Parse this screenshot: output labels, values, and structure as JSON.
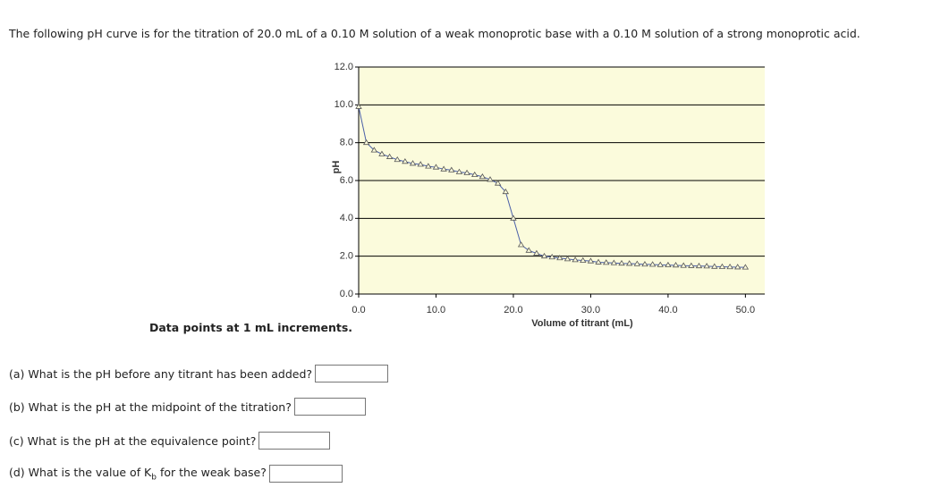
{
  "intro": "The following pH curve is for the titration of 20.0 mL of a 0.10 M solution of a weak monoprotic base with a 0.10 M solution of a strong monoprotic acid.",
  "chart_data": {
    "type": "line",
    "xlabel": "Volume of titrant (mL)",
    "ylabel": "pH",
    "x": [
      0,
      1,
      2,
      3,
      4,
      5,
      6,
      7,
      8,
      9,
      10,
      11,
      12,
      13,
      14,
      15,
      16,
      17,
      18,
      19,
      20,
      21,
      22,
      23,
      24,
      25,
      26,
      27,
      28,
      29,
      30,
      31,
      32,
      33,
      34,
      35,
      36,
      37,
      38,
      39,
      40,
      41,
      42,
      43,
      44,
      45,
      46,
      47,
      48,
      49,
      50
    ],
    "series": [
      {
        "color": "#4a5fa8",
        "values": [
          9.9,
          8.0,
          7.6,
          7.4,
          7.25,
          7.1,
          7.0,
          6.9,
          6.85,
          6.75,
          6.7,
          6.6,
          6.55,
          6.45,
          6.4,
          6.3,
          6.2,
          6.05,
          5.85,
          5.4,
          4.0,
          2.6,
          2.3,
          2.15,
          2.0,
          1.95,
          1.9,
          1.85,
          1.8,
          1.77,
          1.74,
          1.68,
          1.66,
          1.64,
          1.62,
          1.61,
          1.59,
          1.57,
          1.56,
          1.54,
          1.53,
          1.52,
          1.5,
          1.49,
          1.48,
          1.47,
          1.45,
          1.44,
          1.43,
          1.42,
          1.41
        ]
      }
    ],
    "xlim": [
      0,
      52.5
    ],
    "ylim": [
      0,
      12
    ],
    "xticks": [
      {
        "value": 0,
        "label": "0.0"
      },
      {
        "value": 10,
        "label": "10.0"
      },
      {
        "value": 20,
        "label": "20.0"
      },
      {
        "value": 30,
        "label": "30.0"
      },
      {
        "value": 40,
        "label": "40.0"
      },
      {
        "value": 50,
        "label": "50.0"
      }
    ],
    "yticks": [
      {
        "value": 0,
        "label": "0.0"
      },
      {
        "value": 2,
        "label": "2.0"
      },
      {
        "value": 4,
        "label": "4.0"
      },
      {
        "value": 6,
        "label": "6.0"
      },
      {
        "value": 8,
        "label": "8.0"
      },
      {
        "value": 10,
        "label": "10.0"
      },
      {
        "value": 12,
        "label": "12.0"
      }
    ],
    "grid": true,
    "background": "#fbfbdc"
  },
  "note": "Data points at 1 mL increments.",
  "questions": [
    {
      "label": "(a) What is the pH before any titrant has been added?"
    },
    {
      "label": "(b) What is the pH at the midpoint of the titration?"
    },
    {
      "label": "(c) What is the pH at the equivalence point?"
    },
    {
      "label": "(d) What is the value of K",
      "subscript": "b",
      "label_end": " for the weak base?"
    }
  ]
}
